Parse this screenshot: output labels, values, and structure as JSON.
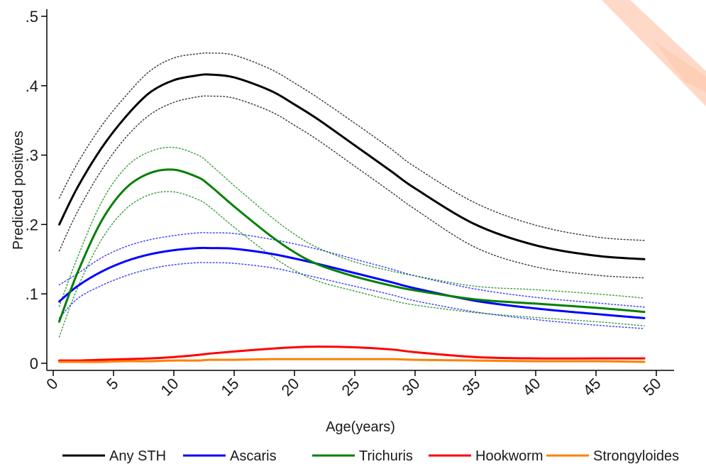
{
  "chart_data": {
    "type": "line",
    "xlabel": "Age(years)",
    "ylabel": "Predicted positives",
    "xlim": [
      0,
      50
    ],
    "ylim": [
      0,
      0.5
    ],
    "x_ticks": [
      0,
      5,
      10,
      15,
      20,
      25,
      30,
      35,
      40,
      45,
      50
    ],
    "x_tick_labels": [
      "0",
      "5",
      "10",
      "15",
      "20",
      "25",
      "30",
      "35",
      "40",
      "45",
      "50"
    ],
    "y_ticks": [
      0,
      0.1,
      0.2,
      0.3,
      0.4,
      0.5
    ],
    "y_tick_labels": [
      "0",
      ".1",
      ".2",
      ".3",
      ".4",
      ".5"
    ],
    "grid": false,
    "legend_position": "bottom",
    "x": [
      0.5,
      2,
      4,
      6,
      8,
      10,
      12,
      13,
      15,
      18,
      20,
      22,
      25,
      28,
      30,
      35,
      40,
      45,
      49
    ],
    "series": [
      {
        "name": "Any STH",
        "color": "#000000",
        "values": [
          0.2,
          0.253,
          0.31,
          0.355,
          0.39,
          0.408,
          0.415,
          0.416,
          0.412,
          0.393,
          0.373,
          0.351,
          0.314,
          0.277,
          0.252,
          0.2,
          0.17,
          0.155,
          0.15
        ],
        "ci_lower": [
          0.162,
          0.218,
          0.278,
          0.325,
          0.358,
          0.376,
          0.384,
          0.385,
          0.382,
          0.363,
          0.343,
          0.321,
          0.284,
          0.247,
          0.222,
          0.167,
          0.139,
          0.127,
          0.123
        ],
        "ci_upper": [
          0.238,
          0.288,
          0.342,
          0.385,
          0.421,
          0.44,
          0.446,
          0.447,
          0.444,
          0.424,
          0.404,
          0.382,
          0.346,
          0.309,
          0.283,
          0.231,
          0.199,
          0.182,
          0.177
        ]
      },
      {
        "name": "Ascaris",
        "color": "#0000ff",
        "values": [
          0.089,
          0.111,
          0.132,
          0.147,
          0.157,
          0.163,
          0.166,
          0.166,
          0.165,
          0.158,
          0.151,
          0.143,
          0.13,
          0.117,
          0.108,
          0.09,
          0.079,
          0.071,
          0.065
        ],
        "ci_lower": [
          0.065,
          0.093,
          0.112,
          0.126,
          0.136,
          0.142,
          0.145,
          0.145,
          0.144,
          0.138,
          0.131,
          0.123,
          0.111,
          0.099,
          0.09,
          0.074,
          0.063,
          0.055,
          0.05
        ],
        "ci_upper": [
          0.113,
          0.129,
          0.152,
          0.168,
          0.178,
          0.184,
          0.188,
          0.188,
          0.187,
          0.179,
          0.172,
          0.164,
          0.15,
          0.136,
          0.126,
          0.107,
          0.095,
          0.087,
          0.081
        ]
      },
      {
        "name": "Trichuris",
        "color": "#008000",
        "values": [
          0.06,
          0.13,
          0.205,
          0.252,
          0.274,
          0.279,
          0.268,
          0.256,
          0.226,
          0.184,
          0.16,
          0.142,
          0.125,
          0.112,
          0.105,
          0.092,
          0.086,
          0.08,
          0.074
        ],
        "ci_lower": [
          0.038,
          0.108,
          0.178,
          0.222,
          0.243,
          0.247,
          0.236,
          0.225,
          0.196,
          0.156,
          0.134,
          0.118,
          0.104,
          0.091,
          0.084,
          0.073,
          0.066,
          0.06,
          0.054
        ],
        "ci_upper": [
          0.082,
          0.152,
          0.232,
          0.282,
          0.305,
          0.311,
          0.3,
          0.287,
          0.256,
          0.212,
          0.186,
          0.166,
          0.146,
          0.133,
          0.126,
          0.111,
          0.106,
          0.1,
          0.094
        ]
      },
      {
        "name": "Hookworm",
        "color": "#ff0000",
        "values": [
          0.004,
          0.004,
          0.005,
          0.006,
          0.007,
          0.009,
          0.012,
          0.014,
          0.017,
          0.021,
          0.023,
          0.024,
          0.023,
          0.02,
          0.016,
          0.009,
          0.007,
          0.007,
          0.007
        ]
      },
      {
        "name": "Strongyloides",
        "color": "#ff8000",
        "values": [
          0.002,
          0.002,
          0.002,
          0.003,
          0.003,
          0.004,
          0.004,
          0.005,
          0.005,
          0.006,
          0.006,
          0.006,
          0.006,
          0.006,
          0.005,
          0.004,
          0.003,
          0.003,
          0.002
        ]
      }
    ]
  },
  "decoration": {
    "accent_color": "#ff6a2a"
  }
}
